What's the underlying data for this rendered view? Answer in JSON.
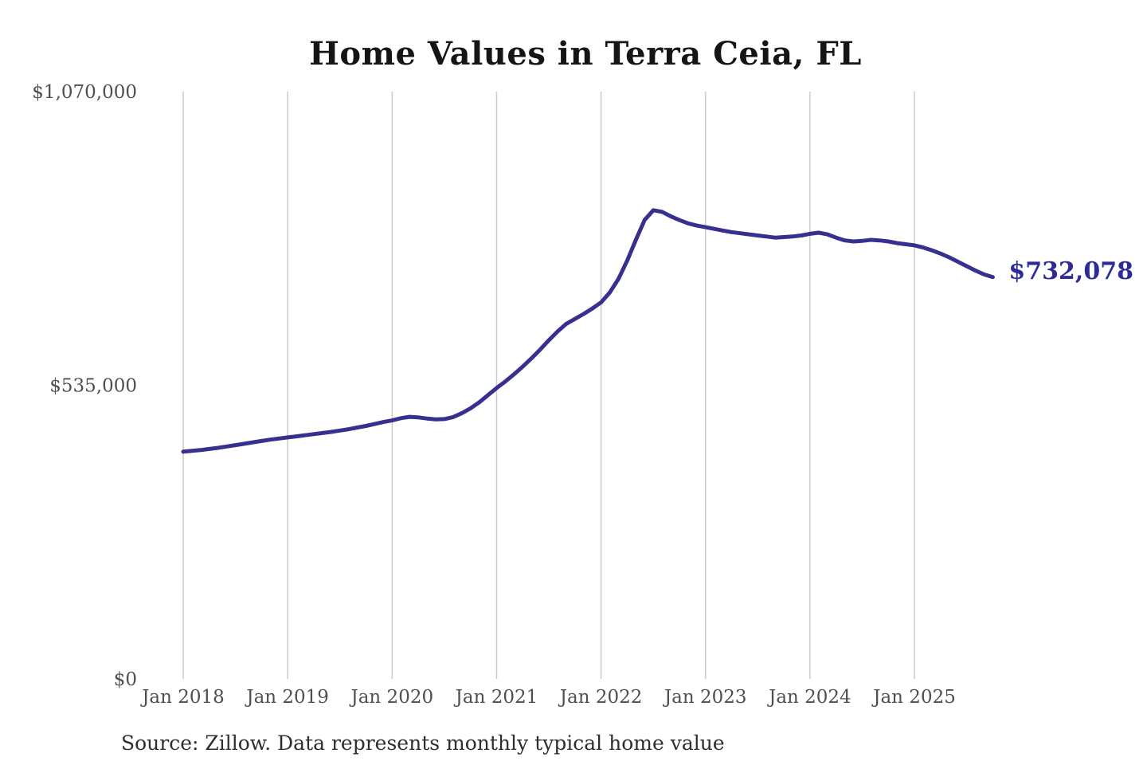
{
  "chart_data": {
    "type": "line",
    "title": "Home Values in Terra Ceia, FL",
    "source": "Source: Zillow. Data represents monthly typical home value",
    "latest_value_label": "$732,078",
    "latest_value": 732078,
    "xlabel": "",
    "ylabel": "",
    "ylim": [
      0,
      1070000
    ],
    "y_ticks": [
      {
        "value": 0,
        "label": "$0"
      },
      {
        "value": 535000,
        "label": "$535,000"
      },
      {
        "value": 1070000,
        "label": "$1,070,000"
      }
    ],
    "x_ticks": [
      {
        "month_index": 0,
        "label": "Jan 2018"
      },
      {
        "month_index": 12,
        "label": "Jan 2019"
      },
      {
        "month_index": 24,
        "label": "Jan 2020"
      },
      {
        "month_index": 36,
        "label": "Jan 2021"
      },
      {
        "month_index": 48,
        "label": "Jan 2022"
      },
      {
        "month_index": 60,
        "label": "Jan 2023"
      },
      {
        "month_index": 72,
        "label": "Jan 2024"
      },
      {
        "month_index": 84,
        "label": "Jan 2025"
      }
    ],
    "x_start": "Jan 2018",
    "x_end": "Oct 2025",
    "frequency": "monthly",
    "grid": "vertical-only",
    "legend_position": "none",
    "series": [
      {
        "name": "Typical home value",
        "values": [
          414000,
          415500,
          417000,
          419000,
          421000,
          423500,
          426000,
          428500,
          431000,
          433500,
          436000,
          438000,
          440000,
          442000,
          444000,
          446000,
          448000,
          450000,
          452500,
          455000,
          458000,
          461000,
          464500,
          468000,
          471000,
          475000,
          477500,
          476500,
          474500,
          473000,
          473500,
          477000,
          484000,
          493000,
          504000,
          517000,
          530000,
          542000,
          555000,
          569000,
          584000,
          600000,
          617000,
          633000,
          647000,
          656000,
          665000,
          675000,
          686000,
          704000,
          729000,
          762000,
          800000,
          836000,
          854000,
          851000,
          843000,
          836000,
          830000,
          826000,
          823000,
          820000,
          817000,
          814000,
          812000,
          810000,
          808000,
          806000,
          804000,
          805000,
          806000,
          808000,
          811000,
          813000,
          810000,
          804000,
          799000,
          797000,
          798000,
          800000,
          799000,
          797000,
          794000,
          792000,
          790000,
          786000,
          781000,
          775000,
          768000,
          760000,
          752000,
          744000,
          737000,
          732078
        ]
      }
    ],
    "colors": {
      "line": "#37308f",
      "latest_value_text": "#2f2b96",
      "grid": "#cbcbcb",
      "axis_text": "#4f4f4f",
      "title_text": "#151515",
      "source_text": "#2e2e2e",
      "background": "#ffffff"
    }
  }
}
